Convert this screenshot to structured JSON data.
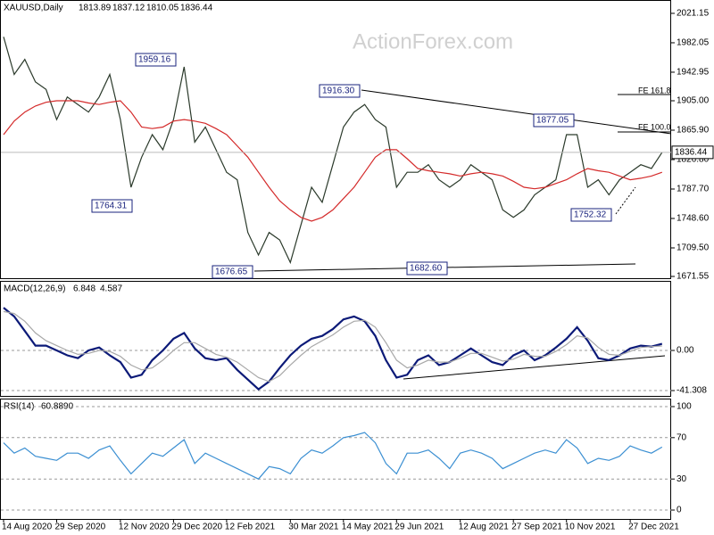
{
  "chart_data": [
    {
      "type": "line",
      "title": "XAUUSD,Daily",
      "last_bar": [
        1813.89,
        1837.12,
        1810.05,
        1836.44
      ],
      "watermark": "ActionForex.com",
      "categories": [
        "14 Aug 2020",
        null,
        null,
        null,
        null,
        "29 Sep 2020",
        null,
        null,
        null,
        null,
        null,
        "12 Nov 2020",
        null,
        null,
        null,
        null,
        "29 Dec 2020",
        null,
        null,
        null,
        null,
        "12 Feb 2021",
        null,
        null,
        null,
        null,
        null,
        "30 Mar 2021",
        null,
        null,
        null,
        null,
        "14 May 2021",
        null,
        null,
        null,
        null,
        "29 Jun 2021",
        null,
        null,
        null,
        null,
        null,
        "12 Aug 2021",
        null,
        null,
        null,
        null,
        "27 Sep 2021",
        null,
        null,
        null,
        null,
        "10 Nov 2021",
        null,
        null,
        null,
        null,
        null,
        "27 Dec 2021",
        null,
        null,
        null
      ],
      "series": [
        {
          "color": "#2b3a2b",
          "values": [
            1990,
            1940,
            1960,
            1930,
            1920,
            1880,
            1910,
            1900,
            1890,
            1910,
            1940,
            1880,
            1790,
            1830,
            1860,
            1840,
            1880,
            1950,
            1850,
            1870,
            1840,
            1810,
            1800,
            1730,
            1700,
            1730,
            1720,
            1690,
            1740,
            1790,
            1770,
            1820,
            1870,
            1890,
            1900,
            1880,
            1870,
            1790,
            1810,
            1810,
            1820,
            1800,
            1790,
            1800,
            1820,
            1810,
            1800,
            1760,
            1750,
            1760,
            1780,
            1790,
            1800,
            1860,
            1860,
            1790,
            1800,
            1780,
            1800,
            1810,
            1820,
            1815,
            1836.44
          ]
        },
        {
          "color": "#d42a2a",
          "values": [
            1860,
            1878,
            1890,
            1898,
            1903,
            1905,
            1905,
            1905,
            1902,
            1900,
            1903,
            1905,
            1890,
            1870,
            1868,
            1870,
            1878,
            1880,
            1878,
            1875,
            1868,
            1860,
            1845,
            1830,
            1810,
            1790,
            1772,
            1760,
            1750,
            1745,
            1750,
            1760,
            1775,
            1790,
            1810,
            1830,
            1840,
            1840,
            1828,
            1815,
            1812,
            1810,
            1808,
            1805,
            1808,
            1810,
            1808,
            1805,
            1798,
            1790,
            1788,
            1790,
            1795,
            1800,
            1808,
            1815,
            1812,
            1810,
            1805,
            1800,
            1802,
            1805,
            1810
          ]
        }
      ],
      "ylim": [
        1669.2,
        2037.7
      ],
      "yticks": [
        2021.15,
        1982.05,
        1942.95,
        {
          "value": 1905,
          "label": "1905.00"
        },
        {
          "value": 1865.9,
          "label": "1865.90"
        },
        {
          "value": 1826.8,
          "label": "1826.80"
        },
        {
          "value": 1787.7,
          "label": "1787.70"
        },
        {
          "value": 1748.6,
          "label": "1748.60"
        },
        {
          "value": 1709.5,
          "label": "1709.50"
        },
        1671.55
      ],
      "annotations": [
        1959.16,
        1916.3,
        1877.05,
        1764.31,
        1752.32,
        1676.65,
        1682.6,
        "FE 161.8",
        "FE 100.0"
      ],
      "annotation_labels": [
        "1959.16",
        "1916.30",
        "1877.05",
        "1764.31",
        "1752.32",
        "1676.65",
        "1682.60"
      ]
    },
    {
      "type": "line",
      "title": "MACD(12,26,9)",
      "series": [
        {
          "color": "#0c1a78",
          "values": [
            44,
            35,
            20,
            5,
            5,
            0,
            -5,
            -8,
            0,
            3,
            -5,
            -12,
            -28,
            -25,
            -10,
            0,
            12,
            18,
            2,
            -8,
            -10,
            -8,
            -20,
            -30,
            -40,
            -32,
            -18,
            -5,
            5,
            12,
            15,
            22,
            32,
            35,
            30,
            15,
            -10,
            -28,
            -25,
            -10,
            -5,
            -15,
            -12,
            -5,
            2,
            -5,
            -12,
            -15,
            -5,
            0,
            -10,
            -5,
            3,
            12,
            24,
            10,
            -8,
            -10,
            -5,
            2,
            5,
            4,
            6.848
          ]
        },
        {
          "color": "#a8a8a8",
          "values": [
            40,
            38,
            30,
            18,
            10,
            5,
            0,
            -4,
            -3,
            0,
            -1,
            -6,
            -15,
            -20,
            -18,
            -10,
            0,
            8,
            8,
            2,
            -4,
            -7,
            -12,
            -20,
            -28,
            -32,
            -26,
            -15,
            -5,
            4,
            10,
            16,
            24,
            30,
            31,
            24,
            8,
            -10,
            -18,
            -15,
            -10,
            -12,
            -12,
            -8,
            -3,
            -3,
            -7,
            -11,
            -9,
            -4,
            -6,
            -6,
            -1,
            6,
            15,
            13,
            3,
            -4,
            -5,
            -1,
            3,
            4,
            4.587
          ]
        }
      ],
      "ylim": [
        -46.8,
        70.7
      ],
      "yticks": [
        {
          "value": 0,
          "label": "0.00"
        },
        -41.308
      ]
    },
    {
      "type": "line",
      "title": "RSI(14)",
      "current": "60.8890",
      "series": [
        {
          "color": "#3b8fd2",
          "values": [
            65,
            55,
            60,
            52,
            50,
            48,
            55,
            55,
            50,
            58,
            62,
            48,
            35,
            45,
            55,
            52,
            60,
            68,
            45,
            55,
            50,
            45,
            40,
            35,
            30,
            42,
            40,
            35,
            50,
            58,
            55,
            62,
            70,
            72,
            75,
            65,
            45,
            35,
            55,
            55,
            58,
            50,
            40,
            55,
            58,
            55,
            50,
            40,
            45,
            50,
            55,
            58,
            55,
            68,
            60,
            45,
            50,
            48,
            52,
            62,
            58,
            55,
            60.889
          ]
        }
      ],
      "ylim": [
        -8.6,
        106.9
      ],
      "yticks": [
        100,
        70,
        30,
        0
      ]
    }
  ]
}
